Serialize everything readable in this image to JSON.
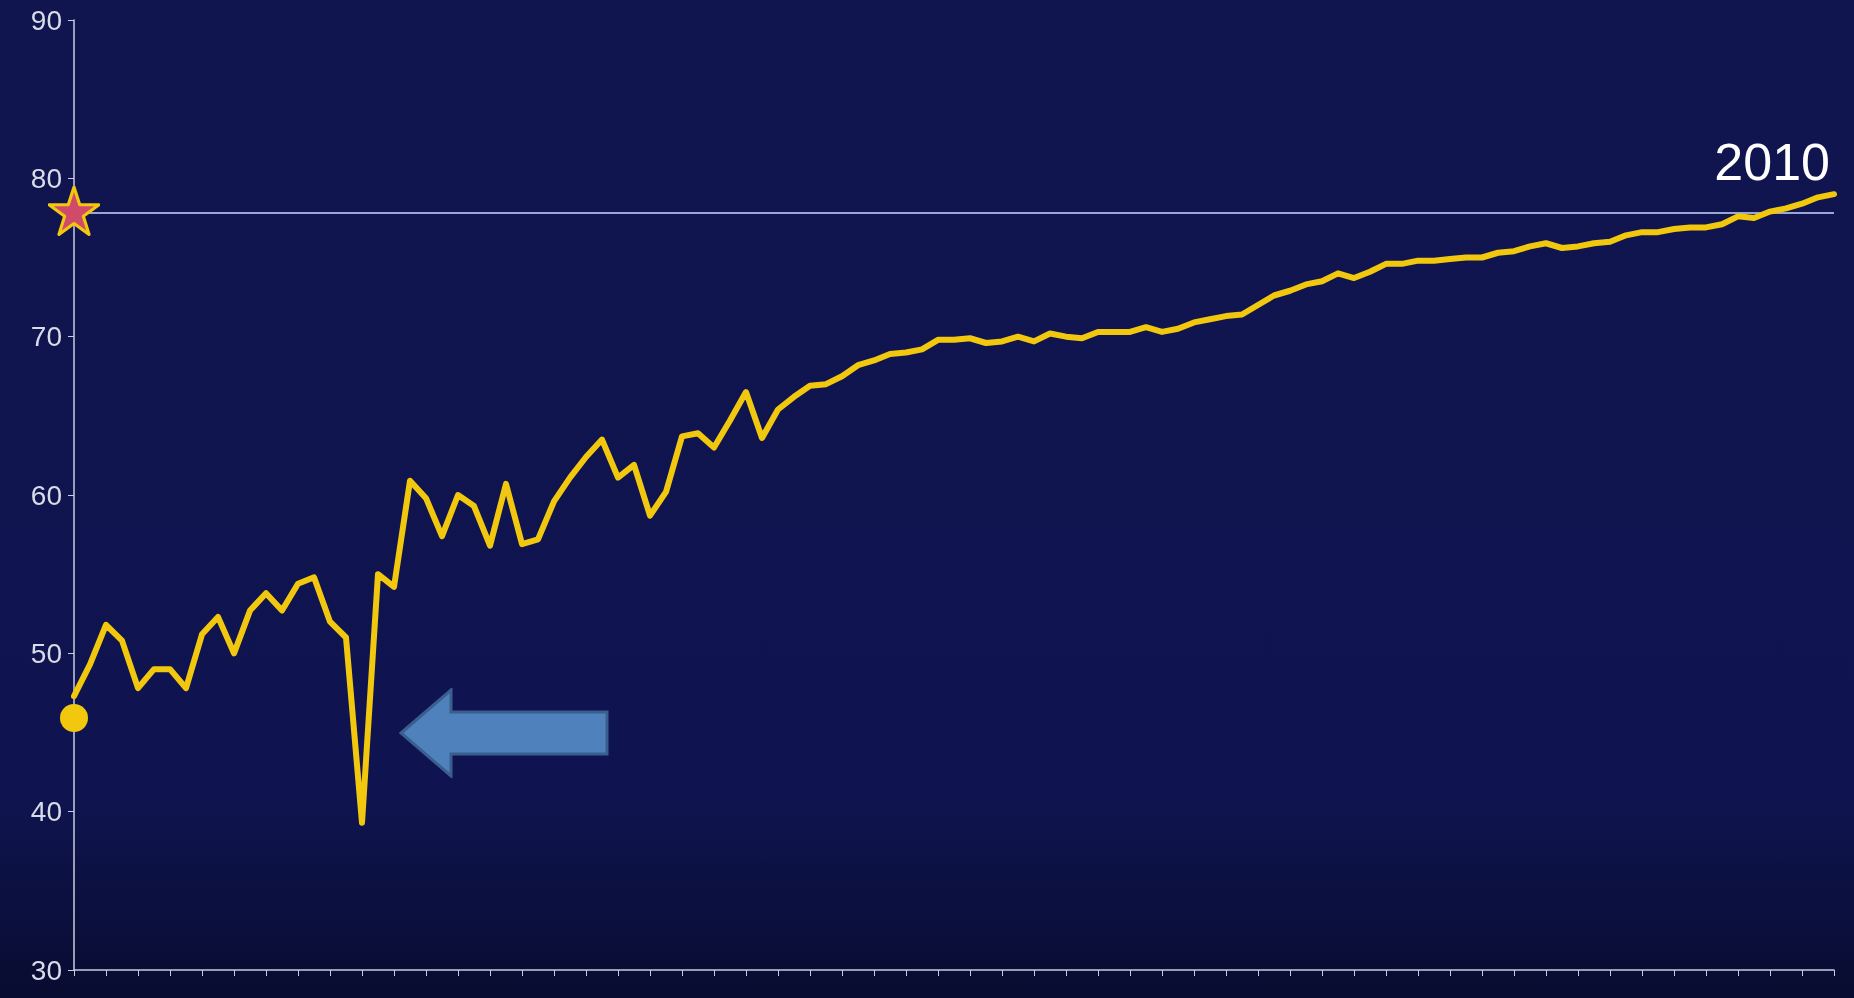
{
  "chart_data": {
    "type": "line",
    "categories": [
      null,
      null,
      null,
      null,
      null,
      null,
      null,
      null,
      null,
      null,
      null,
      null,
      null,
      null,
      null,
      null,
      null,
      null,
      null,
      null,
      null,
      null,
      null,
      null,
      null,
      null,
      null,
      null,
      null,
      null,
      null,
      null,
      null,
      null,
      null,
      null,
      null,
      null,
      null,
      null,
      null,
      null,
      null,
      null,
      null,
      null,
      null,
      null,
      null,
      null,
      null,
      null,
      null,
      null,
      null,
      null,
      null,
      null,
      null,
      null,
      null,
      null,
      null,
      null,
      null,
      null,
      null,
      null,
      null,
      null,
      null,
      null,
      null,
      null,
      null,
      null,
      null,
      null,
      null,
      null,
      null,
      null,
      null,
      null,
      null,
      null,
      null,
      null,
      null,
      null,
      null,
      null,
      null,
      null,
      null,
      null,
      null,
      null,
      null,
      null,
      null,
      null,
      null,
      null,
      null,
      null,
      null,
      null,
      null,
      null,
      null
    ],
    "series": [
      {
        "color": "#f2c80f",
        "values": [
          47.3,
          49.3,
          51.8,
          50.8,
          47.8,
          49.0,
          49.0,
          47.8,
          51.2,
          52.3,
          50.0,
          52.7,
          53.8,
          52.7,
          54.4,
          54.8,
          52.0,
          51.0,
          39.3,
          55.0,
          54.2,
          60.9,
          59.8,
          57.4,
          60.0,
          59.3,
          56.8,
          60.7,
          56.9,
          57.2,
          59.6,
          61.1,
          62.4,
          63.5,
          61.1,
          61.9,
          58.7,
          60.2,
          63.7,
          63.9,
          63.0,
          64.7,
          66.5,
          63.6,
          65.4,
          66.2,
          66.9,
          67.0,
          67.5,
          68.2,
          68.5,
          68.9,
          69.0,
          69.2,
          69.8,
          69.8,
          69.9,
          69.6,
          69.7,
          70.0,
          69.7,
          70.2,
          70.0,
          69.9,
          70.3,
          70.3,
          70.3,
          70.6,
          70.3,
          70.5,
          70.9,
          71.1,
          71.3,
          71.4,
          72.0,
          72.6,
          72.9,
          73.3,
          73.5,
          74.0,
          73.7,
          74.1,
          74.6,
          74.6,
          74.8,
          74.8,
          74.9,
          75.0,
          75.0,
          75.3,
          75.4,
          75.7,
          75.9,
          75.6,
          75.7,
          75.9,
          76.0,
          76.4,
          76.6,
          76.6,
          76.8,
          76.9,
          76.9,
          77.1,
          77.6,
          77.5,
          77.9,
          78.1,
          78.4,
          78.8,
          79.0
        ]
      }
    ],
    "ylim": [
      30,
      90
    ],
    "yticks": [
      30,
      40,
      50,
      60,
      70,
      80,
      90
    ],
    "ref_lines": [
      {
        "axis": "y",
        "value": 77.8,
        "color": "#9aa6d8"
      }
    ],
    "annotations": [
      "2010"
    ]
  }
}
